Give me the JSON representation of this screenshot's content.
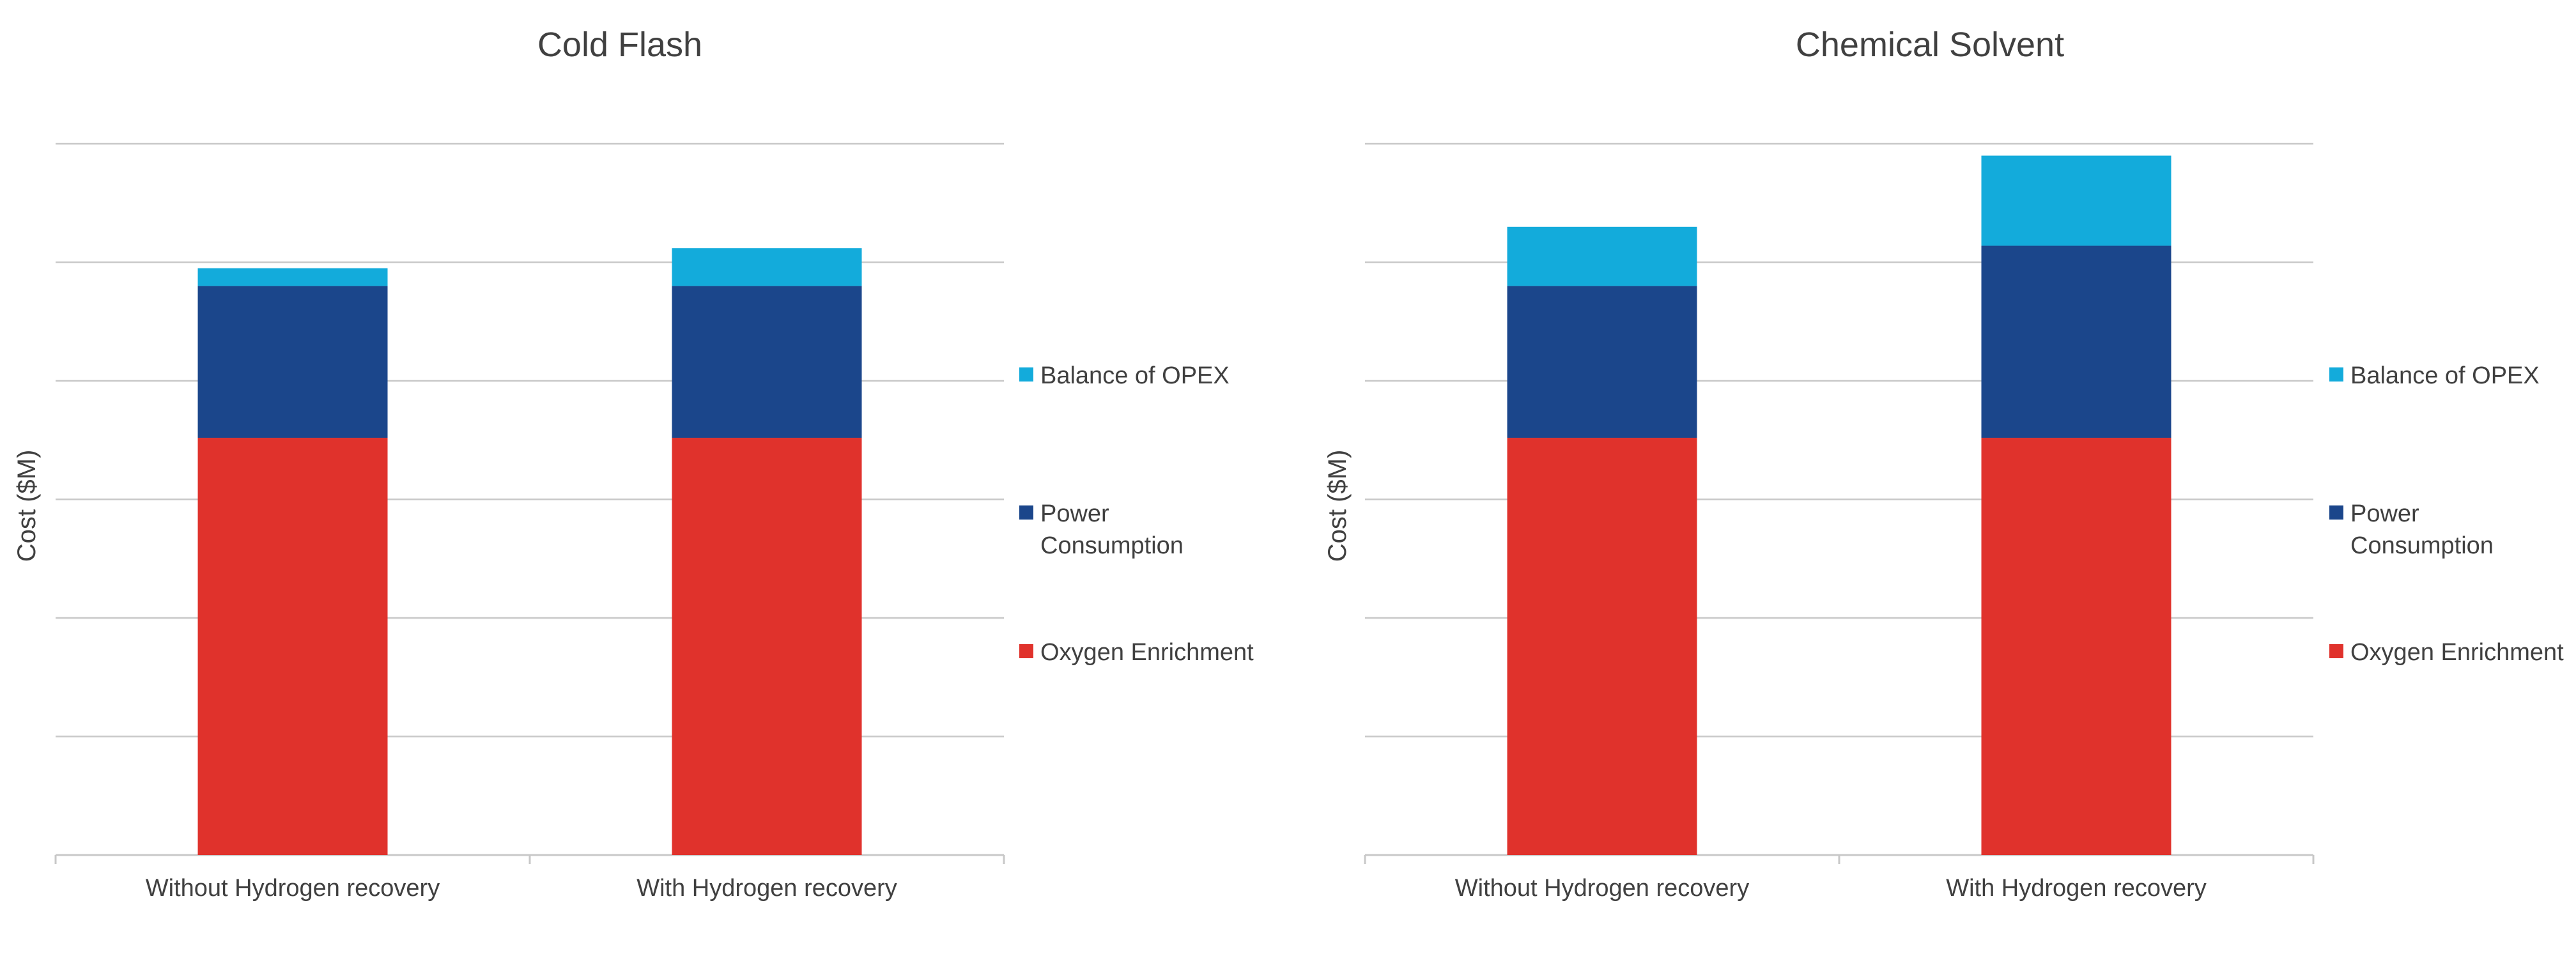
{
  "colors": {
    "balance_of_opex": "#13ABDB",
    "power_consumption": "#1B468B",
    "oxygen_enrichment": "#E0322C",
    "gridline": "#C8C8C8",
    "text": "#404040"
  },
  "chart_data": [
    {
      "type": "bar",
      "stacked": true,
      "title": "Cold Flash",
      "xlabel": "",
      "ylabel": "Cost ($M)",
      "ylim": [
        0,
        6
      ],
      "grid": true,
      "y_tick_labels_shown": false,
      "legend_position": "right",
      "categories": [
        "Without Hydrogen recovery",
        "With Hydrogen recovery"
      ],
      "series": [
        {
          "name": "Oxygen Enrichment",
          "color_key": "oxygen_enrichment",
          "values": [
            3.52,
            3.52
          ]
        },
        {
          "name": "Power Consumption",
          "color_key": "power_consumption",
          "values": [
            1.28,
            1.28
          ]
        },
        {
          "name": "Balance of OPEX",
          "color_key": "balance_of_opex",
          "values": [
            0.15,
            0.32
          ]
        }
      ],
      "legend": [
        {
          "lines": [
            "Balance of OPEX"
          ],
          "color_key": "balance_of_opex"
        },
        {
          "lines": [
            "Power",
            "Consumption"
          ],
          "color_key": "power_consumption"
        },
        {
          "lines": [
            "Oxygen Enrichment"
          ],
          "color_key": "oxygen_enrichment"
        }
      ]
    },
    {
      "type": "bar",
      "stacked": true,
      "title": "Chemical Solvent",
      "xlabel": "",
      "ylabel": "Cost ($M)",
      "ylim": [
        0,
        6
      ],
      "grid": true,
      "y_tick_labels_shown": false,
      "legend_position": "right",
      "categories": [
        "Without Hydrogen recovery",
        "With Hydrogen recovery"
      ],
      "series": [
        {
          "name": "Oxygen Enrichment",
          "color_key": "oxygen_enrichment",
          "values": [
            3.52,
            3.52
          ]
        },
        {
          "name": "Power Consumption",
          "color_key": "power_consumption",
          "values": [
            1.28,
            1.62
          ]
        },
        {
          "name": "Balance of OPEX",
          "color_key": "balance_of_opex",
          "values": [
            0.5,
            0.76
          ]
        }
      ],
      "legend": [
        {
          "lines": [
            "Balance of OPEX"
          ],
          "color_key": "balance_of_opex"
        },
        {
          "lines": [
            "Power",
            "Consumption"
          ],
          "color_key": "power_consumption"
        },
        {
          "lines": [
            "Oxygen Enrichment"
          ],
          "color_key": "oxygen_enrichment"
        }
      ]
    }
  ]
}
